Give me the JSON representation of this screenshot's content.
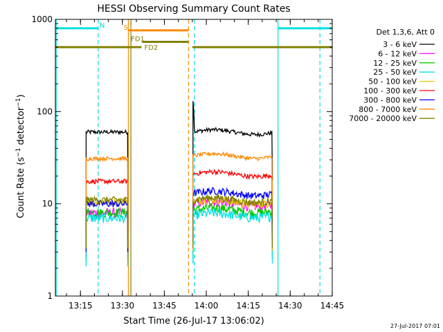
{
  "chart_data": {
    "type": "line",
    "title": "HESSI Observing Summary Count Rates",
    "xlabel": "Start Time (26-Jul-17 13:06:02)",
    "ylabel": "Count Rate (s⁻¹ detector⁻¹)",
    "ylabel_parts": {
      "a": "Count Rate (s",
      "sup1": "−1",
      "b": " detector",
      "sup2": "−1",
      "c": ")"
    },
    "y_scale": "log",
    "ylim": [
      1,
      1000
    ],
    "xlim_minutes": [
      0,
      99
    ],
    "x_start": "13:06:02",
    "y_ticks": [
      {
        "value": 1,
        "label": "1"
      },
      {
        "value": 10,
        "label": "10"
      },
      {
        "value": 100,
        "label": "100"
      },
      {
        "value": 1000,
        "label": "1000"
      }
    ],
    "x_ticks": [
      {
        "minute": 8.97,
        "label": "13:15"
      },
      {
        "minute": 23.97,
        "label": "13:30"
      },
      {
        "minute": 38.97,
        "label": "13:45"
      },
      {
        "minute": 53.97,
        "label": "14:00"
      },
      {
        "minute": 68.97,
        "label": "14:15"
      },
      {
        "minute": 83.97,
        "label": "14:30"
      },
      {
        "minute": 98.97,
        "label": "14:45"
      }
    ],
    "legend": {
      "title": "Det 1,3,6, Att 0",
      "placement": "right"
    },
    "series": [
      {
        "name": "3 - 6 keV",
        "color": "#000000",
        "level_a": 60,
        "level_b": 60,
        "noise": 0.05
      },
      {
        "name": "6 - 12 keV",
        "color": "#ff00ff",
        "level_a": 8,
        "level_b": 10,
        "noise": 0.12
      },
      {
        "name": "12 - 25 keV",
        "color": "#00cc00",
        "level_a": 8,
        "level_b": 8.5,
        "noise": 0.12
      },
      {
        "name": "25 - 50 keV",
        "color": "#00e0e0",
        "level_a": 7,
        "level_b": 7.5,
        "noise": 0.12
      },
      {
        "name": "50 - 100 keV",
        "color": "#e6c800",
        "level_a": 10.5,
        "level_b": 10.5,
        "noise": 0.1
      },
      {
        "name": "100 - 300 keV",
        "color": "#ff0000",
        "level_a": 17.5,
        "level_b": 21,
        "noise": 0.06
      },
      {
        "name": "300 - 800 keV",
        "color": "#0000ff",
        "level_a": 10,
        "level_b": 13,
        "noise": 0.09
      },
      {
        "name": "800 - 7000 keV",
        "color": "#ff8800",
        "level_a": 31,
        "level_b": 33,
        "noise": 0.05
      },
      {
        "name": "7000 - 20000 keV",
        "color": "#808000",
        "level_a": 11,
        "level_b": 11,
        "noise": 0.09
      }
    ],
    "data_intervals_minutes": [
      [
        11.0,
        25.9
      ],
      [
        49.2,
        77.6
      ]
    ],
    "spike": {
      "minute": 49.4,
      "peak": 135
    },
    "flag_bars": [
      {
        "label": "N",
        "color": "#00e0e0",
        "y": 800,
        "segments": [
          [
            0,
            15.3
          ],
          [
            79.6,
            99
          ]
        ],
        "label_minute": 15.8
      },
      {
        "label": "S",
        "color": "#ff8800",
        "y": 760,
        "segments": [
          [
            26.1,
            47.6
          ]
        ],
        "label_minute": 24.4
      },
      {
        "label": "FD1",
        "color": "#808000",
        "y": 570,
        "segments": [
          [
            31.0,
            47.6
          ]
        ],
        "label_minute": 27.0
      },
      {
        "label": "FD2",
        "color": "#808000",
        "y": 500,
        "segments": [
          [
            0,
            30.8
          ],
          [
            49.0,
            99
          ]
        ],
        "label_minute": 31.8
      }
    ],
    "vertical_lines": [
      {
        "minute": 0.3,
        "color": "#00e0e0",
        "style": "solid"
      },
      {
        "minute": 15.3,
        "color": "#00e0e0",
        "style": "dashed"
      },
      {
        "minute": 26.1,
        "color": "#ff8800",
        "style": "solid"
      },
      {
        "minute": 27.0,
        "color": "#808000",
        "style": "solid"
      },
      {
        "minute": 47.6,
        "color": "#ff8800",
        "style": "dashed"
      },
      {
        "minute": 49.7,
        "color": "#00e0e0",
        "style": "dashed"
      },
      {
        "minute": 79.6,
        "color": "#00e0e0",
        "style": "solid"
      },
      {
        "minute": 94.6,
        "color": "#00e0e0",
        "style": "dashed"
      }
    ]
  },
  "footer": {
    "date_stamp": "27-Jul-2017 07:01"
  }
}
